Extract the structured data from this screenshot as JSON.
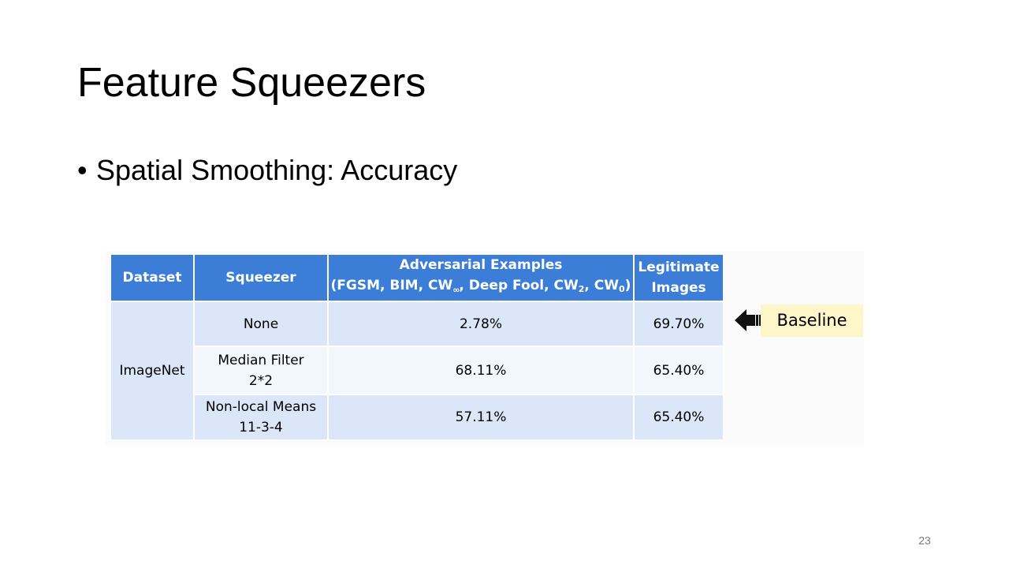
{
  "slide": {
    "title": "Feature Squeezers",
    "bullet": "Spatial Smoothing: Accuracy",
    "page_number": "23"
  },
  "table": {
    "headers": {
      "dataset": "Dataset",
      "squeezer": "Squeezer",
      "adversarial_line1": "Adversarial Examples",
      "adversarial_line2": {
        "p1": "(FGSM, BIM, CW",
        "sub1": "∞",
        "p2": ", Deep Fool, CW",
        "sub2": "2",
        "p3": ", CW",
        "sub3": "0",
        "p4": ")"
      },
      "legitimate_line1": "Legitimate",
      "legitimate_line2": "Images"
    },
    "dataset": "ImageNet",
    "rows": [
      {
        "squeezer_line1": "None",
        "squeezer_line2": "",
        "adversarial": "2.78%",
        "legitimate": "69.70%"
      },
      {
        "squeezer_line1": "Median Filter",
        "squeezer_line2": "2*2",
        "adversarial": "68.11%",
        "legitimate": "65.40%"
      },
      {
        "squeezer_line1": "Non-local Means",
        "squeezer_line2": "11-3-4",
        "adversarial": "57.11%",
        "legitimate": "65.40%"
      }
    ]
  },
  "annotation": {
    "label": "Baseline",
    "arrow_icon": "arrow-left-icon"
  },
  "colors": {
    "header_bg": "#3c7dd7",
    "band_bg": "#dbe6f8",
    "light_bg": "#f2f6fd",
    "callout_bg": "#fdf6c8"
  }
}
